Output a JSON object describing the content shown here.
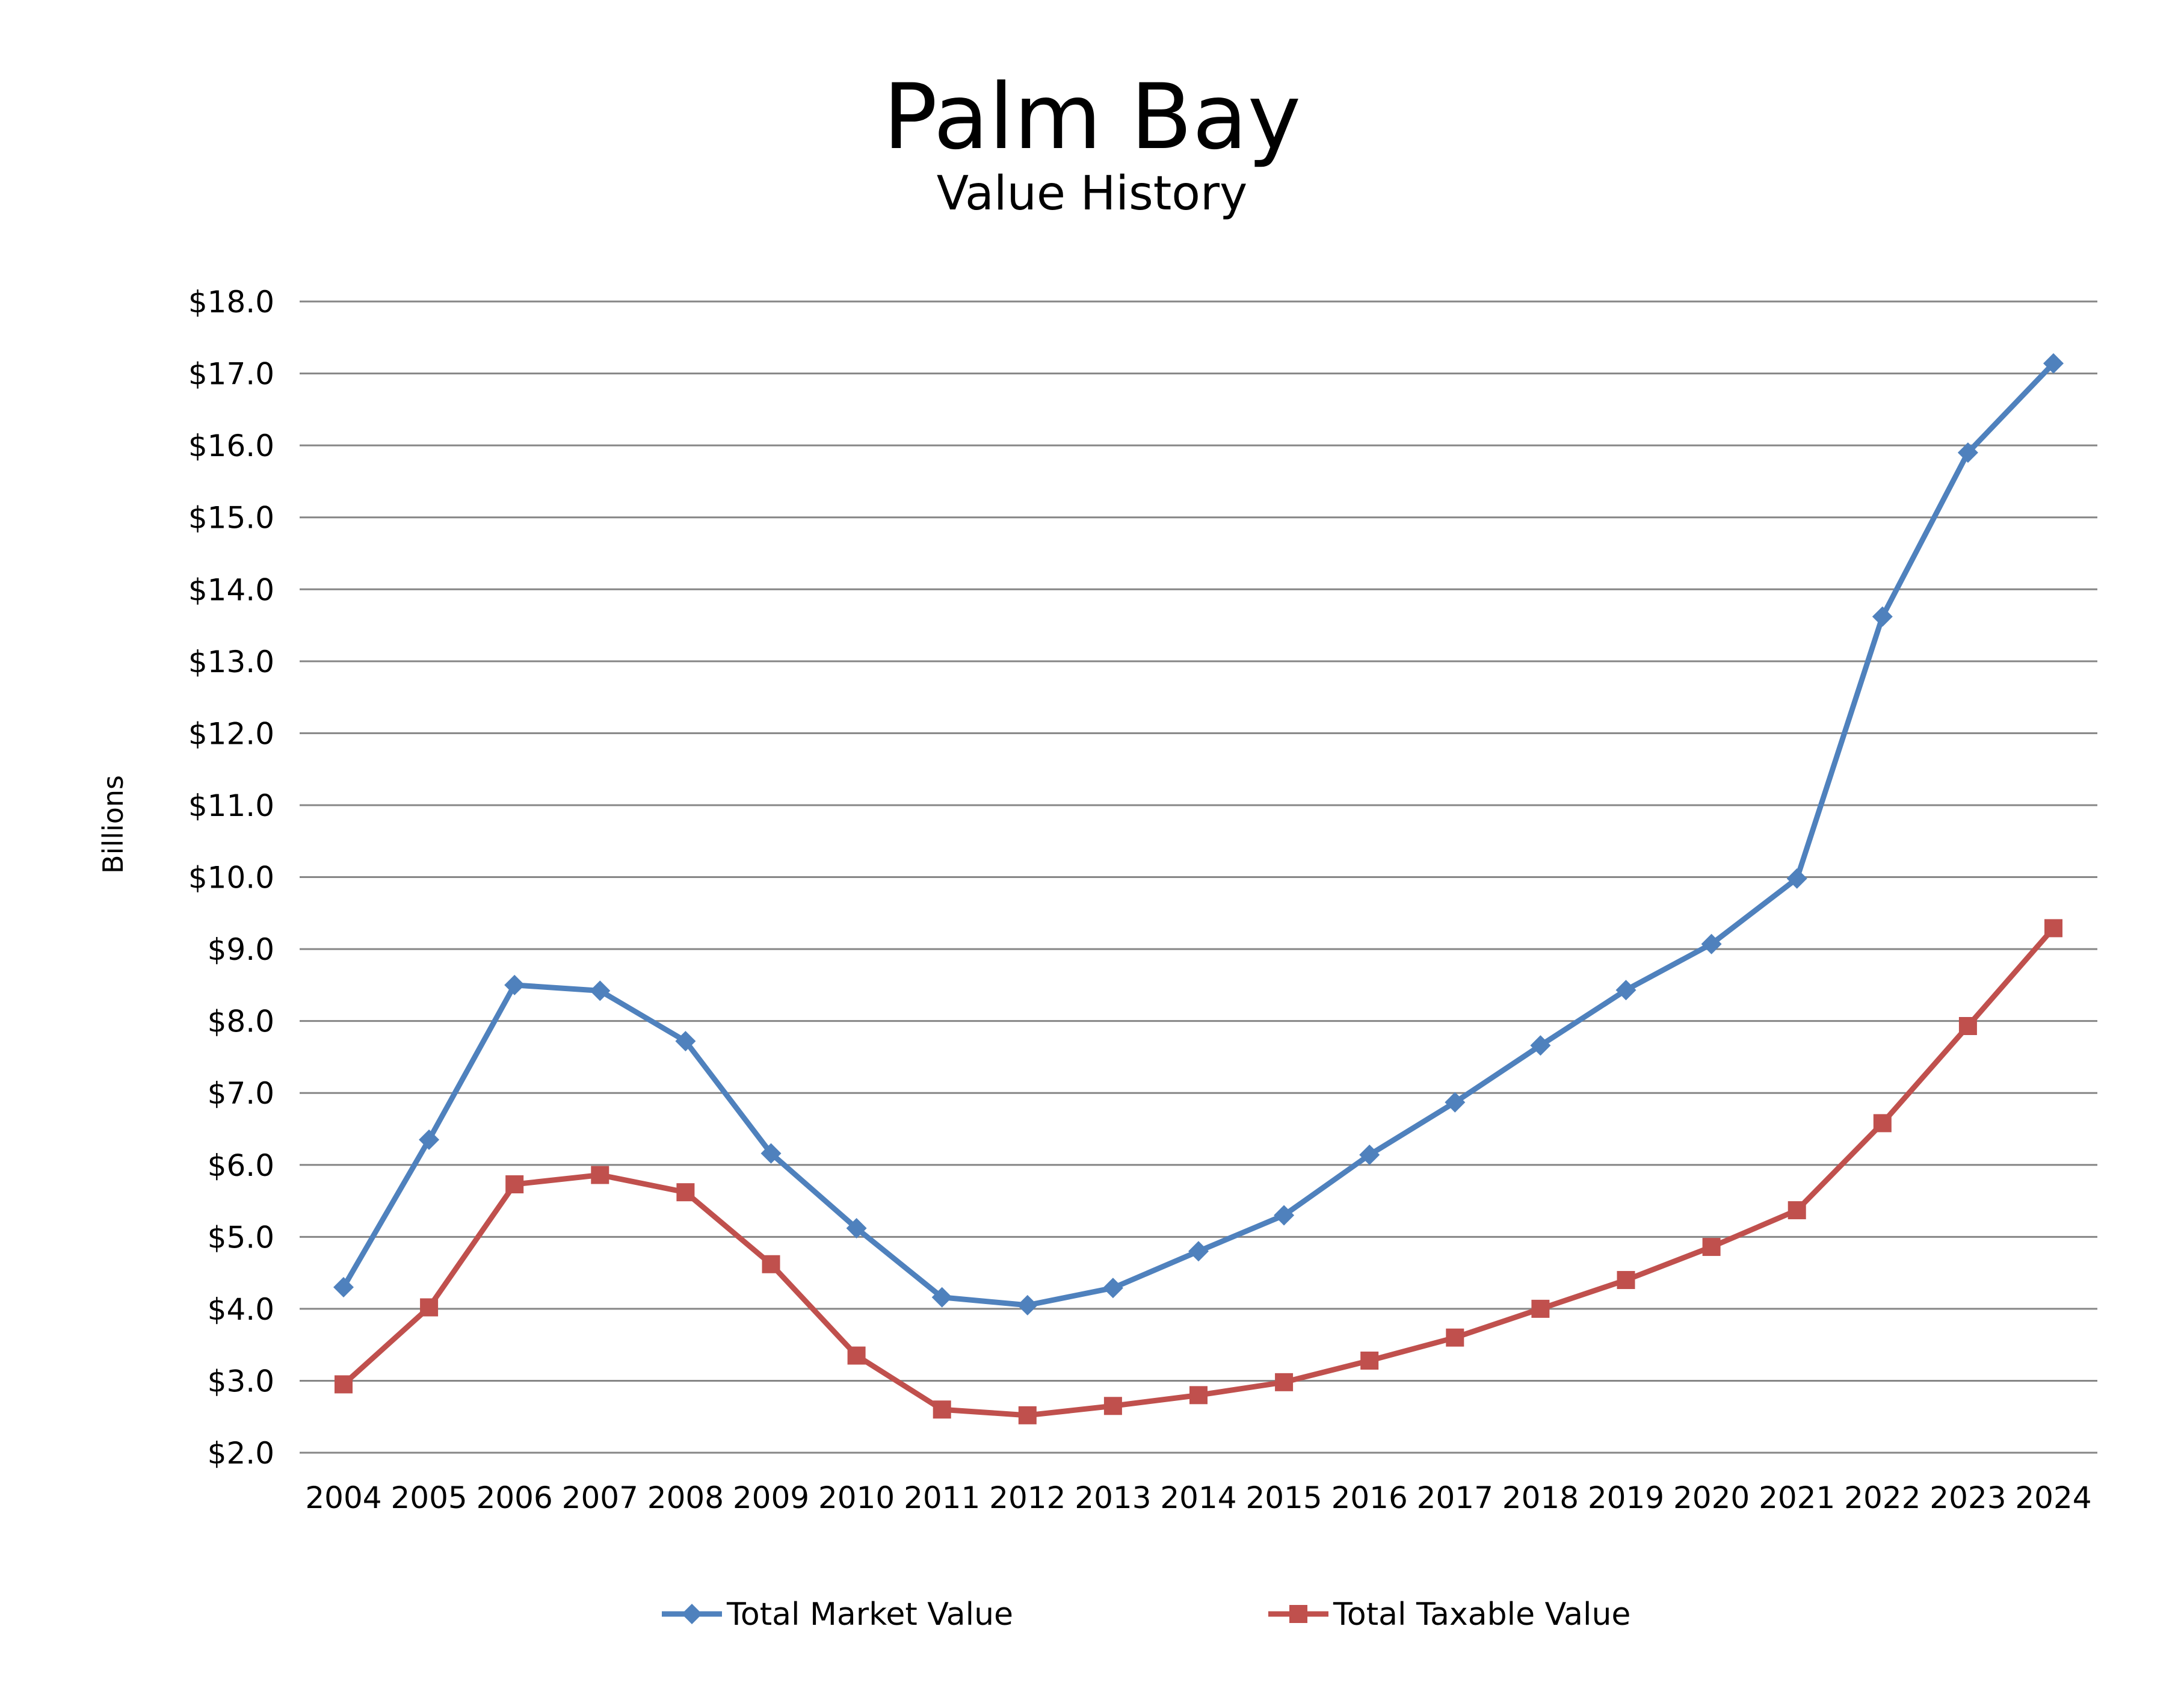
{
  "chart_data": {
    "type": "line",
    "title": "Palm Bay",
    "subtitle": "Value History",
    "xlabel": "",
    "ylabel": "Billions",
    "ylim": [
      2,
      18
    ],
    "ytick_step": 1,
    "ytick_labels": [
      "$2.0",
      "$3.0",
      "$4.0",
      "$5.0",
      "$6.0",
      "$7.0",
      "$8.0",
      "$9.0",
      "$10.0",
      "$11.0",
      "$12.0",
      "$13.0",
      "$14.0",
      "$15.0",
      "$16.0",
      "$17.0",
      "$18.0"
    ],
    "categories": [
      "2004",
      "2005",
      "2006",
      "2007",
      "2008",
      "2009",
      "2010",
      "2011",
      "2012",
      "2013",
      "2014",
      "2015",
      "2016",
      "2017",
      "2018",
      "2019",
      "2020",
      "2021",
      "2022",
      "2023",
      "2024"
    ],
    "grid": true,
    "legend_position": "bottom",
    "series": [
      {
        "name": "Total Market Value",
        "color": "#4F81BD",
        "marker": "diamond",
        "values": [
          4.3,
          6.35,
          8.5,
          8.42,
          7.72,
          6.16,
          5.12,
          4.16,
          4.05,
          4.29,
          4.8,
          5.3,
          6.14,
          6.87,
          7.66,
          8.43,
          9.07,
          9.98,
          13.62,
          15.9,
          17.14
        ]
      },
      {
        "name": "Total Taxable Value",
        "color": "#C0504D",
        "marker": "square",
        "values": [
          2.95,
          4.02,
          5.73,
          5.86,
          5.62,
          4.62,
          3.35,
          2.6,
          2.52,
          2.65,
          2.8,
          2.98,
          3.28,
          3.6,
          4.0,
          4.4,
          4.86,
          5.37,
          6.58,
          7.93,
          9.29
        ]
      }
    ]
  }
}
